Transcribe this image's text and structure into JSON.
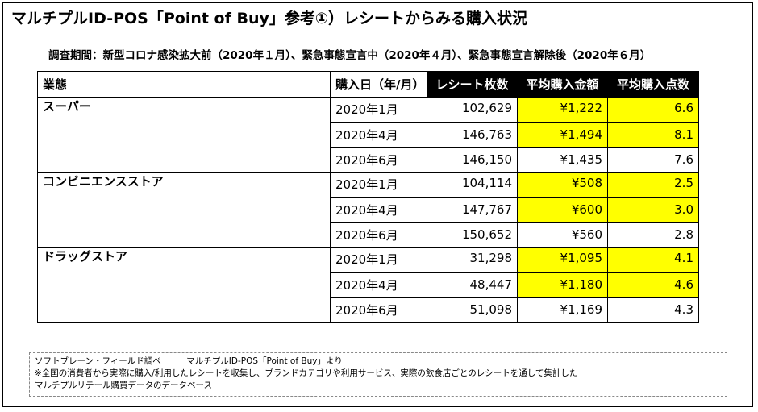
{
  "title": "マルチプルID-POS「Point of Buy」参考①）レシートからみる購入状況",
  "period": "調査期間：新型コロナ感染拡大前（2020年１月）、緊急事態宣言中（2020年４月）、緊急事態宣言解除後（2020年６月）",
  "colors": {
    "highlight": "#ffff00",
    "header_dark": "#000000"
  },
  "table": {
    "headers": [
      "業態",
      "購入日（年/月）",
      "レシート枚数",
      "平均購入金額",
      "平均購入点数"
    ],
    "groups": [
      {
        "category": "スーパー",
        "rows": [
          {
            "date": "2020年1月",
            "receipts": "102,629",
            "avg_amount": "¥1,222",
            "avg_items": "6.6",
            "highlight": true
          },
          {
            "date": "2020年4月",
            "receipts": "146,763",
            "avg_amount": "¥1,494",
            "avg_items": "8.1",
            "highlight": true
          },
          {
            "date": "2020年6月",
            "receipts": "146,150",
            "avg_amount": "¥1,435",
            "avg_items": "7.6",
            "highlight": false
          }
        ]
      },
      {
        "category": "コンビニエンスストア",
        "rows": [
          {
            "date": "2020年1月",
            "receipts": "104,114",
            "avg_amount": "¥508",
            "avg_items": "2.5",
            "highlight": true
          },
          {
            "date": "2020年4月",
            "receipts": "147,767",
            "avg_amount": "¥600",
            "avg_items": "3.0",
            "highlight": true
          },
          {
            "date": "2020年6月",
            "receipts": "150,652",
            "avg_amount": "¥560",
            "avg_items": "2.8",
            "highlight": false
          }
        ]
      },
      {
        "category": "ドラッグストア",
        "rows": [
          {
            "date": "2020年1月",
            "receipts": "31,298",
            "avg_amount": "¥1,095",
            "avg_items": "4.1",
            "highlight": true
          },
          {
            "date": "2020年4月",
            "receipts": "48,447",
            "avg_amount": "¥1,180",
            "avg_items": "4.6",
            "highlight": true
          },
          {
            "date": "2020年6月",
            "receipts": "51,098",
            "avg_amount": "¥1,169",
            "avg_items": "4.3",
            "highlight": false
          }
        ]
      }
    ]
  },
  "source": {
    "line1": "ソフトブレーン・フィールド調べ　　　マルチプルID-POS「Point of Buy」より",
    "line2": "※全国の消費者から実際に購入/利用したレシートを収集し、ブランドカテゴリや利用サービス、実際の飲食店ごとのレシートを通して集計した",
    "line3": "マルチプルリテール購買データのデータベース"
  }
}
